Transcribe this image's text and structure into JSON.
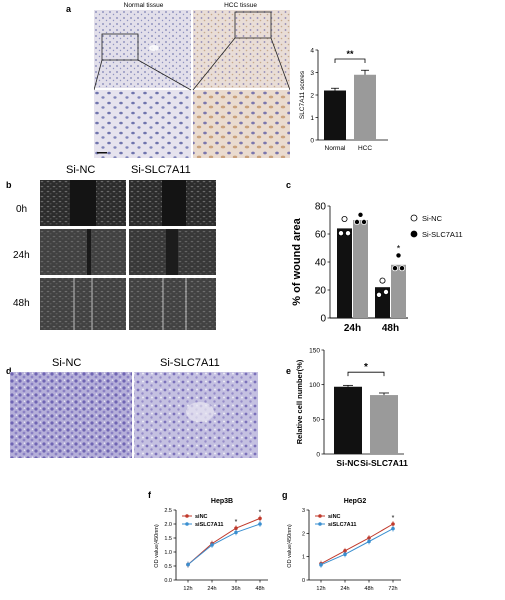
{
  "panels": {
    "a": "a",
    "b": "b",
    "c": "c",
    "d": "d",
    "e": "e",
    "f": "f",
    "g": "g"
  },
  "panel_a": {
    "normal_label": "Normal tissue",
    "hcc_label": "HCC tissue"
  },
  "panel_b": {
    "col_nc": "Si-NC",
    "col_si": "Si-SLC7A11",
    "rows": [
      "0h",
      "24h",
      "48h"
    ]
  },
  "panel_d": {
    "col_nc": "Si-NC",
    "col_si": "Si-SLC7A11"
  },
  "colors": {
    "black_bar": "#111111",
    "gray_bar": "#9a9a9a",
    "red_series": "#c0392b",
    "blue_series": "#3a8fd0",
    "tissue_normal": "#dcd7e6",
    "tissue_hcc": "#e3d6d6",
    "crystal_violet": "#8f86c6"
  },
  "chart_data": [
    {
      "id": "a",
      "type": "bar",
      "categories": [
        "Normal",
        "HCC"
      ],
      "values": [
        2.2,
        2.9
      ],
      "errors": [
        0.1,
        0.2
      ],
      "ylabel": "SLC7A11 scores",
      "ylim": [
        0,
        4
      ],
      "yticks": [
        0,
        1,
        2,
        3,
        4
      ],
      "significance": "**"
    },
    {
      "id": "c",
      "type": "bar",
      "categories": [
        "24h",
        "48h"
      ],
      "series": [
        {
          "name": "Si-NC",
          "values": [
            64,
            22
          ],
          "points": [
            [
              70,
              62,
              62
            ],
            [
              26,
              18,
              20
            ]
          ]
        },
        {
          "name": "Si-SLC7A11",
          "values": [
            70,
            38
          ],
          "points": [
            [
              73,
              70,
              70
            ],
            [
              44,
              37,
              37
            ]
          ]
        }
      ],
      "ylabel": "% of wound area",
      "ylim": [
        0,
        80
      ],
      "yticks": [
        0,
        20,
        40,
        60,
        80
      ],
      "significance": [
        "",
        "*"
      ],
      "legend": "right"
    },
    {
      "id": "e",
      "type": "bar",
      "categories": [
        "Si-NC",
        "Si-SLC7A11"
      ],
      "values": [
        97,
        85
      ],
      "errors": [
        2,
        3
      ],
      "ylabel": "Relative cell number(%)",
      "ylim": [
        0,
        150
      ],
      "yticks": [
        0,
        50,
        100,
        150
      ],
      "significance": "*"
    },
    {
      "id": "f",
      "type": "line",
      "title": "Hep3B",
      "x": [
        "12h",
        "24h",
        "36h",
        "48h"
      ],
      "series": [
        {
          "name": "siNC",
          "values": [
            0.55,
            1.3,
            1.85,
            2.2
          ]
        },
        {
          "name": "siSLC7A11",
          "values": [
            0.55,
            1.25,
            1.7,
            2.0
          ]
        }
      ],
      "ylabel": "OD value(450nm)",
      "ylim": [
        0,
        2.5
      ],
      "yticks": [
        0.0,
        0.5,
        1.0,
        1.5,
        2.0,
        2.5
      ],
      "significance": [
        "",
        "",
        "*",
        "*"
      ]
    },
    {
      "id": "g",
      "type": "line",
      "title": "HepG2",
      "x": [
        "12h",
        "24h",
        "48h",
        "72h"
      ],
      "series": [
        {
          "name": "siNC",
          "values": [
            0.7,
            1.25,
            1.8,
            2.4
          ]
        },
        {
          "name": "siSLC7A11",
          "values": [
            0.65,
            1.1,
            1.65,
            2.2
          ]
        }
      ],
      "ylabel": "OD value(450nm)",
      "ylim": [
        0,
        3
      ],
      "yticks": [
        0,
        1,
        2,
        3
      ],
      "significance": [
        "",
        "",
        "",
        "*"
      ]
    }
  ]
}
